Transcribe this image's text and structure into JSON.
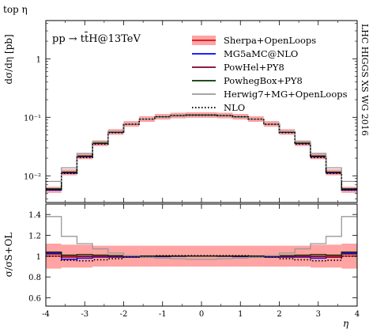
{
  "header": {
    "title": "top η",
    "side_label": "LHC HIGGS XS WG 2016",
    "process_label": "pp → tt̄H@13TeV"
  },
  "chart_data": [
    {
      "type": "line",
      "panel": "main",
      "ylabel": "dσ/dη [pb]",
      "yscale": "log",
      "ylim": [
        0.0035,
        4.5
      ],
      "xlim": [
        -4,
        4
      ],
      "yticks": [
        {
          "value": 0.01,
          "label": "10⁻²"
        },
        {
          "value": 0.1,
          "label": "10⁻¹"
        },
        {
          "value": 1,
          "label": "1"
        }
      ],
      "bin_edges": [
        -4,
        -3.6,
        -3.2,
        -2.8,
        -2.4,
        -2.0,
        -1.6,
        -1.2,
        -0.8,
        -0.4,
        0,
        0.4,
        0.8,
        1.2,
        1.6,
        2.0,
        2.4,
        2.8,
        3.2,
        3.6,
        4
      ],
      "band": {
        "name": "Sherpa+OpenLoops",
        "color": "#ff6666",
        "line_color": "#cc0000",
        "central": [
          0.0058,
          0.0115,
          0.0215,
          0.036,
          0.056,
          0.077,
          0.093,
          0.102,
          0.107,
          0.109,
          0.109,
          0.107,
          0.102,
          0.093,
          0.077,
          0.056,
          0.036,
          0.0215,
          0.0115,
          0.0058
        ],
        "lower": [
          0.0051,
          0.0102,
          0.0192,
          0.0322,
          0.0502,
          0.069,
          0.0835,
          0.0915,
          0.096,
          0.0978,
          0.0978,
          0.096,
          0.0915,
          0.0835,
          0.069,
          0.0502,
          0.0322,
          0.0192,
          0.0102,
          0.0051
        ],
        "upper": [
          0.0065,
          0.0129,
          0.0241,
          0.0403,
          0.0627,
          0.0862,
          0.1042,
          0.1142,
          0.1198,
          0.1221,
          0.1221,
          0.1198,
          0.1142,
          0.1042,
          0.0862,
          0.0627,
          0.0403,
          0.0241,
          0.0129,
          0.0065
        ]
      },
      "series": [
        {
          "name": "MG5aMC@NLO",
          "color": "#0000ff",
          "style": "solid",
          "values": [
            0.0057,
            0.0111,
            0.0211,
            0.0355,
            0.0553,
            0.0765,
            0.0925,
            0.1015,
            0.1068,
            0.1089,
            0.1089,
            0.1068,
            0.1015,
            0.0925,
            0.0765,
            0.0553,
            0.0355,
            0.0211,
            0.0111,
            0.0057
          ]
        },
        {
          "name": "PowHel+PY8",
          "color": "#7a0026",
          "style": "solid",
          "values": [
            0.0059,
            0.0114,
            0.0214,
            0.0358,
            0.0557,
            0.0768,
            0.0928,
            0.1018,
            0.107,
            0.1091,
            0.1091,
            0.107,
            0.1018,
            0.0928,
            0.0768,
            0.0557,
            0.0358,
            0.0214,
            0.0114,
            0.0059
          ]
        },
        {
          "name": "PowhegBox+PY8",
          "color": "#003300",
          "style": "solid",
          "values": [
            0.006,
            0.0116,
            0.0218,
            0.0363,
            0.0563,
            0.0772,
            0.0932,
            0.1021,
            0.1072,
            0.1092,
            0.1092,
            0.1072,
            0.1021,
            0.0932,
            0.0772,
            0.0563,
            0.0363,
            0.0218,
            0.0116,
            0.006
          ]
        },
        {
          "name": "Herwig7+MG+OpenLoops",
          "color": "#999999",
          "style": "solid",
          "values": [
            0.008,
            0.0137,
            0.0242,
            0.0385,
            0.0575,
            0.0775,
            0.0925,
            0.1,
            0.1045,
            0.106,
            0.106,
            0.1045,
            0.1,
            0.0925,
            0.0775,
            0.0575,
            0.0385,
            0.0242,
            0.0137,
            0.008
          ]
        },
        {
          "name": "NLO",
          "color": "#000000",
          "style": "dotted",
          "values": [
            0.0057,
            0.011,
            0.0205,
            0.0348,
            0.0545,
            0.076,
            0.093,
            0.1025,
            0.1075,
            0.1095,
            0.1095,
            0.1075,
            0.1025,
            0.093,
            0.076,
            0.0545,
            0.0348,
            0.0205,
            0.011,
            0.0057
          ]
        }
      ]
    },
    {
      "type": "line",
      "panel": "ratio",
      "ylabel": "σ/σS+OL",
      "ylim": [
        0.52,
        1.5
      ],
      "xlim": [
        -4,
        4
      ],
      "xlabel": "η",
      "yticks": [
        {
          "value": 0.6,
          "label": "0.6"
        },
        {
          "value": 0.8,
          "label": "0.8"
        },
        {
          "value": 1,
          "label": "1"
        },
        {
          "value": 1.2,
          "label": "1.2"
        },
        {
          "value": 1.4,
          "label": "1.4"
        }
      ],
      "xticks": [
        {
          "value": -4,
          "label": "-4"
        },
        {
          "value": -3,
          "label": "-3"
        },
        {
          "value": -2,
          "label": "-2"
        },
        {
          "value": -1,
          "label": "-1"
        },
        {
          "value": 0,
          "label": "0"
        },
        {
          "value": 1,
          "label": "1"
        },
        {
          "value": 2,
          "label": "2"
        },
        {
          "value": 3,
          "label": "3"
        },
        {
          "value": 4,
          "label": "4"
        }
      ],
      "bin_edges": [
        -4,
        -3.6,
        -3.2,
        -2.8,
        -2.4,
        -2.0,
        -1.6,
        -1.2,
        -0.8,
        -0.4,
        0,
        0.4,
        0.8,
        1.2,
        1.6,
        2.0,
        2.4,
        2.8,
        3.2,
        3.6,
        4
      ],
      "band": {
        "name": "Sherpa+OpenLoops",
        "color": "#ff6666",
        "line_color": "#cc0000",
        "lower": [
          0.88,
          0.89,
          0.89,
          0.9,
          0.9,
          0.9,
          0.9,
          0.9,
          0.9,
          0.9,
          0.9,
          0.9,
          0.9,
          0.9,
          0.9,
          0.9,
          0.9,
          0.89,
          0.89,
          0.88
        ],
        "upper": [
          1.12,
          1.11,
          1.11,
          1.1,
          1.1,
          1.1,
          1.1,
          1.1,
          1.1,
          1.1,
          1.1,
          1.1,
          1.1,
          1.1,
          1.1,
          1.1,
          1.1,
          1.11,
          1.11,
          1.12
        ]
      },
      "series": [
        {
          "name": "MG5aMC@NLO",
          "color": "#0000ff",
          "style": "solid",
          "values": [
            1.03,
            0.97,
            0.98,
            0.99,
            0.99,
            0.99,
            0.99,
            0.995,
            0.998,
            1.0,
            1.0,
            0.998,
            0.995,
            0.99,
            0.99,
            0.99,
            0.99,
            0.98,
            0.99,
            1.03
          ]
        },
        {
          "name": "PowHel+PY8",
          "color": "#7a0026",
          "style": "solid",
          "values": [
            1.02,
            0.99,
            0.995,
            0.995,
            0.995,
            0.998,
            0.998,
            0.998,
            1.0,
            1.0,
            1.0,
            1.0,
            0.998,
            0.998,
            0.998,
            0.995,
            0.995,
            0.995,
            0.99,
            1.02
          ]
        },
        {
          "name": "PowhegBox+PY8",
          "color": "#003300",
          "style": "solid",
          "values": [
            1.04,
            1.01,
            1.015,
            1.01,
            1.005,
            1.002,
            1.002,
            1.001,
            1.0,
            1.0,
            1.0,
            1.0,
            1.001,
            1.002,
            1.002,
            1.005,
            1.01,
            1.015,
            1.01,
            1.04
          ]
        },
        {
          "name": "Herwig7+MG+OpenLoops",
          "color": "#999999",
          "style": "solid",
          "values": [
            1.38,
            1.19,
            1.12,
            1.07,
            1.03,
            1.005,
            0.99,
            0.98,
            0.975,
            0.97,
            0.97,
            0.975,
            0.98,
            0.99,
            1.005,
            1.03,
            1.07,
            1.12,
            1.19,
            1.38
          ]
        },
        {
          "name": "NLO",
          "color": "#000000",
          "style": "dotted",
          "values": [
            1.0,
            0.96,
            0.955,
            0.965,
            0.975,
            0.99,
            1.0,
            1.005,
            1.005,
            1.005,
            1.005,
            1.005,
            1.005,
            1.0,
            0.99,
            0.975,
            0.965,
            0.955,
            0.96,
            1.0
          ]
        }
      ]
    }
  ]
}
